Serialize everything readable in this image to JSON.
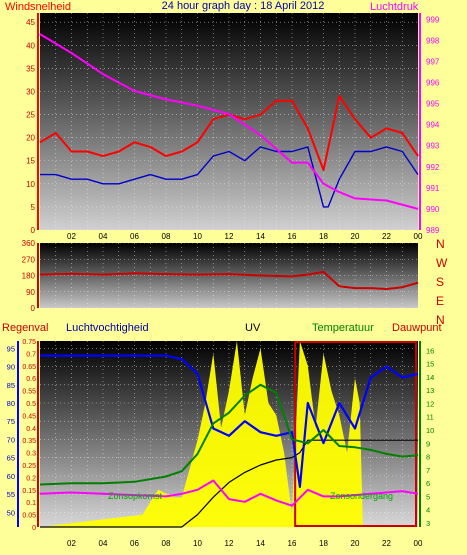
{
  "title": "24 hour graph day : 18 April 2012",
  "x_ticks": [
    "02",
    "04",
    "06",
    "08",
    "10",
    "12",
    "14",
    "16",
    "18",
    "20",
    "22",
    "00"
  ],
  "colors": {
    "background": "#ffff99",
    "wind": "#ff0000",
    "pressure": "#ff00ff",
    "blue_line": "#0000cc",
    "direction": "#cc0000",
    "humidity": "#0000ff",
    "uv": "#ffff00",
    "temperature": "#008000",
    "dewpoint": "#ff00ff",
    "rain": "#000000",
    "solar_box": "#cc0000"
  },
  "panels": {
    "wind": {
      "left_label": "Windsnelheid",
      "right_label": "Luchtdruk",
      "left_ticks": [
        0,
        5,
        10,
        15,
        20,
        25,
        30,
        35,
        40,
        45
      ],
      "right_ticks": [
        989,
        990,
        991,
        992,
        993,
        994,
        995,
        996,
        997,
        998,
        999
      ]
    },
    "direction": {
      "left_ticks": [
        0,
        90,
        180,
        270,
        360
      ],
      "right_letters": [
        "N",
        "W",
        "S",
        "E",
        "N"
      ]
    },
    "bottom": {
      "legend": {
        "rain": "Regenval",
        "humidity": "Luchtvochtigheid",
        "uv": "UV",
        "temperature": "Temperatuur",
        "dewpoint": "Dauwpunt"
      },
      "annotations": {
        "sunrise": "Zonsopkomst",
        "sunset": "Zonsondergang"
      },
      "rain_ticks": [
        "0",
        "0.05",
        "0.1",
        "0.15",
        "0.2",
        "0.25",
        "0.3",
        "0.35",
        "0.4",
        "0.45",
        "0.5",
        "0.55",
        "0.6",
        "0.65",
        "0.7",
        "0.75"
      ],
      "humidity_ticks": [
        50,
        55,
        60,
        65,
        70,
        75,
        80,
        85,
        90,
        95
      ],
      "temp_ticks": [
        3,
        4,
        5,
        6,
        7,
        8,
        9,
        10,
        11,
        12,
        13,
        14,
        15,
        16
      ]
    }
  },
  "chart_data": [
    {
      "type": "line",
      "name": "wind-pressure",
      "x_unit": "hour",
      "xlim": [
        0,
        24
      ],
      "ylim_left": [
        0,
        47
      ],
      "ylim_right": [
        989,
        999.3
      ],
      "series": [
        {
          "name": "Windsnelheid",
          "axis": "left",
          "x": [
            0,
            1,
            2,
            3,
            4,
            5,
            6,
            7,
            8,
            9,
            10,
            11,
            12,
            13,
            14,
            15,
            16,
            17,
            18,
            19,
            20,
            21,
            22,
            23,
            24
          ],
          "values": [
            19,
            21,
            17,
            17,
            16,
            17,
            19,
            18,
            16,
            17,
            19,
            24,
            25,
            24,
            25,
            28,
            28,
            22,
            13,
            29,
            24,
            20,
            22,
            21,
            16
          ]
        },
        {
          "name": "",
          "axis": "left",
          "x": [
            0,
            1,
            2,
            3,
            4,
            5,
            6,
            7,
            8,
            9,
            10,
            11,
            12,
            13,
            14,
            15,
            16,
            17,
            18,
            18.3,
            19,
            20,
            21,
            22,
            23,
            24
          ],
          "values": [
            12,
            12,
            11,
            11,
            10,
            10,
            11,
            12,
            11,
            11,
            12,
            16,
            17,
            15,
            18,
            17,
            17,
            18,
            5,
            5,
            11,
            17,
            17,
            18,
            17,
            12
          ]
        },
        {
          "name": "Luchtdruk",
          "axis": "right",
          "x": [
            0,
            2,
            4,
            6,
            8,
            10,
            12,
            14,
            16,
            17,
            18,
            19,
            20,
            22,
            24
          ],
          "values": [
            998.3,
            997.4,
            996.4,
            995.6,
            995.2,
            994.9,
            994.5,
            993.5,
            992.2,
            992.2,
            991.2,
            990.8,
            990.5,
            990.4,
            990.0
          ]
        }
      ]
    },
    {
      "type": "line",
      "name": "wind-direction",
      "xlim": [
        0,
        24
      ],
      "ylim": [
        0,
        360
      ],
      "series": [
        {
          "name": "",
          "x": [
            0,
            2,
            4,
            6,
            8,
            10,
            12,
            14,
            16,
            17,
            18,
            18.5,
            19,
            20,
            21,
            22,
            23,
            24
          ],
          "values": [
            185,
            190,
            185,
            192,
            188,
            185,
            188,
            180,
            175,
            185,
            200,
            160,
            120,
            110,
            110,
            105,
            115,
            140
          ]
        }
      ]
    },
    {
      "type": "line",
      "name": "humidity-uv-temperature",
      "xlim": [
        0,
        24
      ],
      "ylim_humidity": [
        46,
        97
      ],
      "ylim_temperature": [
        2.7,
        16.7
      ],
      "ylim_rain": [
        0,
        0.75
      ],
      "series": [
        {
          "name": "Luchtvochtigheid",
          "axis": "humidity",
          "x": [
            0,
            3,
            6,
            8,
            9,
            10,
            11,
            12,
            13,
            14,
            15,
            16,
            16.5,
            17,
            18,
            19,
            20,
            21,
            22,
            23,
            24
          ],
          "values": [
            93,
            93,
            93,
            93,
            92,
            88,
            73,
            71,
            75,
            72,
            71,
            72,
            57,
            80,
            69,
            80,
            73,
            87,
            90,
            87,
            88
          ]
        },
        {
          "name": "Temperatuur",
          "axis": "temperature",
          "x": [
            0,
            2,
            4,
            6,
            8,
            9,
            10,
            11,
            12,
            13,
            14,
            15,
            16,
            17,
            18,
            19,
            20,
            21,
            22,
            23,
            24
          ],
          "values": [
            5.9,
            6.0,
            6.0,
            6.1,
            6.5,
            6.9,
            8.2,
            10.5,
            11.3,
            12.6,
            13.4,
            12.8,
            9.3,
            9.0,
            10.0,
            8.8,
            8.7,
            8.5,
            8.2,
            8.0,
            8.1
          ]
        },
        {
          "name": "Dauwpunt",
          "axis": "temperature",
          "x": [
            0,
            2,
            4,
            6,
            8,
            9,
            10,
            11,
            12,
            13,
            14,
            15,
            16,
            17,
            18,
            19,
            20,
            21,
            22,
            23,
            24
          ],
          "values": [
            5.2,
            5.3,
            5.2,
            5.1,
            5.0,
            5.2,
            5.5,
            6.2,
            4.8,
            4.6,
            5.2,
            4.7,
            4.3,
            5.5,
            5.0,
            5.0,
            5.1,
            5.2,
            5.3,
            5.4,
            5.2
          ]
        },
        {
          "name": "UV",
          "axis": "uv",
          "kind": "area",
          "x": [
            0,
            6.5,
            7.5,
            8.5,
            9,
            10,
            10.5,
            11,
            11.5,
            12,
            12.5,
            13,
            13.5,
            14,
            14.5,
            15,
            15.5,
            16,
            16.5,
            17,
            17.5,
            18,
            18.5,
            19,
            19.5,
            20,
            20.3,
            20.5,
            24
          ],
          "values": [
            0,
            0.05,
            0.15,
            0.12,
            0.12,
            0.35,
            0.5,
            0.7,
            0.4,
            0.55,
            0.75,
            0.45,
            0.6,
            0.72,
            0.5,
            0.45,
            0.3,
            0.05,
            0.75,
            0.65,
            0.4,
            0.7,
            0.55,
            0.45,
            0.3,
            0.6,
            0.5,
            0,
            0
          ]
        },
        {
          "name": "Regenval",
          "axis": "rain",
          "x": [
            0,
            9,
            10,
            11,
            12,
            13,
            14,
            15,
            16,
            16.5,
            17,
            24
          ],
          "values": [
            0,
            0,
            0.05,
            0.12,
            0.18,
            0.22,
            0.25,
            0.27,
            0.28,
            0.3,
            0.35,
            0.35
          ]
        }
      ]
    }
  ]
}
